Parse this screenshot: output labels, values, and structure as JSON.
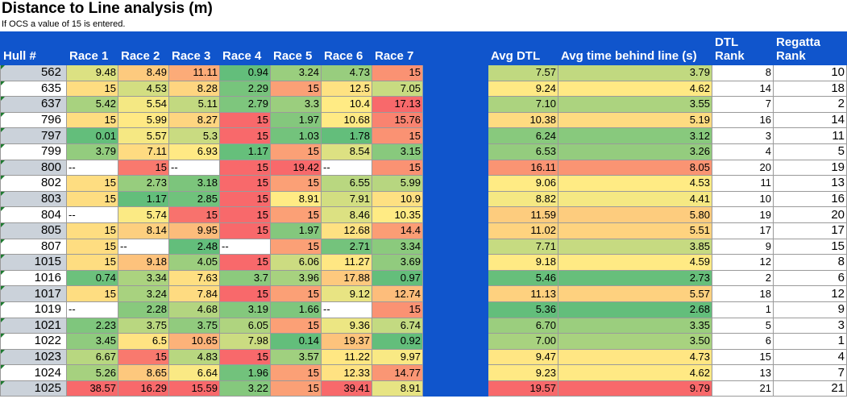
{
  "title": "Distance to Line analysis (m)",
  "subtitle": "If OCS a value of 15 is entered.",
  "headers": {
    "hull": "Hull #",
    "races": [
      "Race 1",
      "Race 2",
      "Race 3",
      "Race 4",
      "Race 5",
      "Race 6",
      "Race 7"
    ],
    "avg_dtl": "Avg DTL",
    "avg_time": "Avg time behind line (s)",
    "dtl_rank": "DTL Rank",
    "regatta_rank": "Regatta Rank"
  },
  "rows": [
    {
      "hull": "562",
      "races": [
        "9.48",
        "8.49",
        "11.11",
        "0.94",
        "3.24",
        "4.73",
        "15"
      ],
      "avg_dtl": "7.57",
      "avg_time": "3.79",
      "dtl_rank": "8",
      "regatta_rank": "10"
    },
    {
      "hull": "635",
      "races": [
        "15",
        "4.53",
        "8.28",
        "2.29",
        "15",
        "12.5",
        "7.05"
      ],
      "avg_dtl": "9.24",
      "avg_time": "4.62",
      "dtl_rank": "14",
      "regatta_rank": "18"
    },
    {
      "hull": "637",
      "races": [
        "5.42",
        "5.54",
        "5.11",
        "2.79",
        "3.3",
        "10.4",
        "17.13"
      ],
      "avg_dtl": "7.10",
      "avg_time": "3.55",
      "dtl_rank": "7",
      "regatta_rank": "2"
    },
    {
      "hull": "796",
      "races": [
        "15",
        "5.99",
        "8.27",
        "15",
        "1.97",
        "10.68",
        "15.76"
      ],
      "avg_dtl": "10.38",
      "avg_time": "5.19",
      "dtl_rank": "16",
      "regatta_rank": "14"
    },
    {
      "hull": "797",
      "races": [
        "0.01",
        "5.57",
        "5.3",
        "15",
        "1.03",
        "1.78",
        "15"
      ],
      "avg_dtl": "6.24",
      "avg_time": "3.12",
      "dtl_rank": "3",
      "regatta_rank": "11"
    },
    {
      "hull": "799",
      "races": [
        "3.79",
        "7.11",
        "6.93",
        "1.17",
        "15",
        "8.54",
        "3.15"
      ],
      "avg_dtl": "6.53",
      "avg_time": "3.26",
      "dtl_rank": "4",
      "regatta_rank": "5"
    },
    {
      "hull": "800",
      "races": [
        "--",
        "15",
        "--",
        "15",
        "19.42",
        "--",
        "15"
      ],
      "avg_dtl": "16.11",
      "avg_time": "8.05",
      "dtl_rank": "20",
      "regatta_rank": "19"
    },
    {
      "hull": "802",
      "races": [
        "15",
        "2.73",
        "3.18",
        "15",
        "15",
        "6.55",
        "5.99"
      ],
      "avg_dtl": "9.06",
      "avg_time": "4.53",
      "dtl_rank": "11",
      "regatta_rank": "13"
    },
    {
      "hull": "803",
      "races": [
        "15",
        "1.17",
        "2.85",
        "15",
        "8.91",
        "7.91",
        "10.9"
      ],
      "avg_dtl": "8.82",
      "avg_time": "4.41",
      "dtl_rank": "10",
      "regatta_rank": "16"
    },
    {
      "hull": "804",
      "races": [
        "--",
        "5.74",
        "15",
        "15",
        "15",
        "8.46",
        "10.35"
      ],
      "avg_dtl": "11.59",
      "avg_time": "5.80",
      "dtl_rank": "19",
      "regatta_rank": "20"
    },
    {
      "hull": "805",
      "races": [
        "15",
        "8.14",
        "9.95",
        "15",
        "1.97",
        "12.68",
        "14.4"
      ],
      "avg_dtl": "11.02",
      "avg_time": "5.51",
      "dtl_rank": "17",
      "regatta_rank": "17"
    },
    {
      "hull": "807",
      "races": [
        "15",
        "--",
        "2.48",
        "--",
        "15",
        "2.71",
        "3.34"
      ],
      "avg_dtl": "7.71",
      "avg_time": "3.85",
      "dtl_rank": "9",
      "regatta_rank": "15"
    },
    {
      "hull": "1015",
      "races": [
        "15",
        "9.18",
        "4.05",
        "15",
        "6.06",
        "11.27",
        "3.69"
      ],
      "avg_dtl": "9.18",
      "avg_time": "4.59",
      "dtl_rank": "12",
      "regatta_rank": "8"
    },
    {
      "hull": "1016",
      "races": [
        "0.74",
        "3.34",
        "7.63",
        "3.7",
        "3.96",
        "17.88",
        "0.97"
      ],
      "avg_dtl": "5.46",
      "avg_time": "2.73",
      "dtl_rank": "2",
      "regatta_rank": "6"
    },
    {
      "hull": "1017",
      "races": [
        "15",
        "3.24",
        "7.84",
        "15",
        "15",
        "9.12",
        "12.74"
      ],
      "avg_dtl": "11.13",
      "avg_time": "5.57",
      "dtl_rank": "18",
      "regatta_rank": "12"
    },
    {
      "hull": "1019",
      "races": [
        "--",
        "2.28",
        "4.68",
        "3.19",
        "1.66",
        "--",
        "15"
      ],
      "avg_dtl": "5.36",
      "avg_time": "2.68",
      "dtl_rank": "1",
      "regatta_rank": "9"
    },
    {
      "hull": "1021",
      "races": [
        "2.23",
        "3.75",
        "3.75",
        "6.05",
        "15",
        "9.36",
        "6.74"
      ],
      "avg_dtl": "6.70",
      "avg_time": "3.35",
      "dtl_rank": "5",
      "regatta_rank": "3"
    },
    {
      "hull": "1022",
      "races": [
        "3.45",
        "6.5",
        "10.65",
        "7.98",
        "0.14",
        "19.37",
        "0.92"
      ],
      "avg_dtl": "7.00",
      "avg_time": "3.50",
      "dtl_rank": "6",
      "regatta_rank": "1"
    },
    {
      "hull": "1023",
      "races": [
        "6.67",
        "15",
        "4.83",
        "15",
        "3.57",
        "11.22",
        "9.97"
      ],
      "avg_dtl": "9.47",
      "avg_time": "4.73",
      "dtl_rank": "15",
      "regatta_rank": "4"
    },
    {
      "hull": "1024",
      "races": [
        "5.26",
        "8.65",
        "6.64",
        "1.96",
        "15",
        "12.33",
        "14.77"
      ],
      "avg_dtl": "9.23",
      "avg_time": "4.62",
      "dtl_rank": "13",
      "regatta_rank": "7"
    },
    {
      "hull": "1025",
      "races": [
        "38.57",
        "16.29",
        "15.59",
        "3.22",
        "15",
        "39.41",
        "8.91"
      ],
      "avg_dtl": "19.57",
      "avg_time": "9.79",
      "dtl_rank": "21",
      "regatta_rank": "21"
    }
  ],
  "colors": {
    "header_blue": "#1055cc",
    "scale_low": "#63be7b",
    "scale_mid": "#ffeb84",
    "scale_high": "#f8696b",
    "hull_alt_row": "#cbd2da"
  }
}
